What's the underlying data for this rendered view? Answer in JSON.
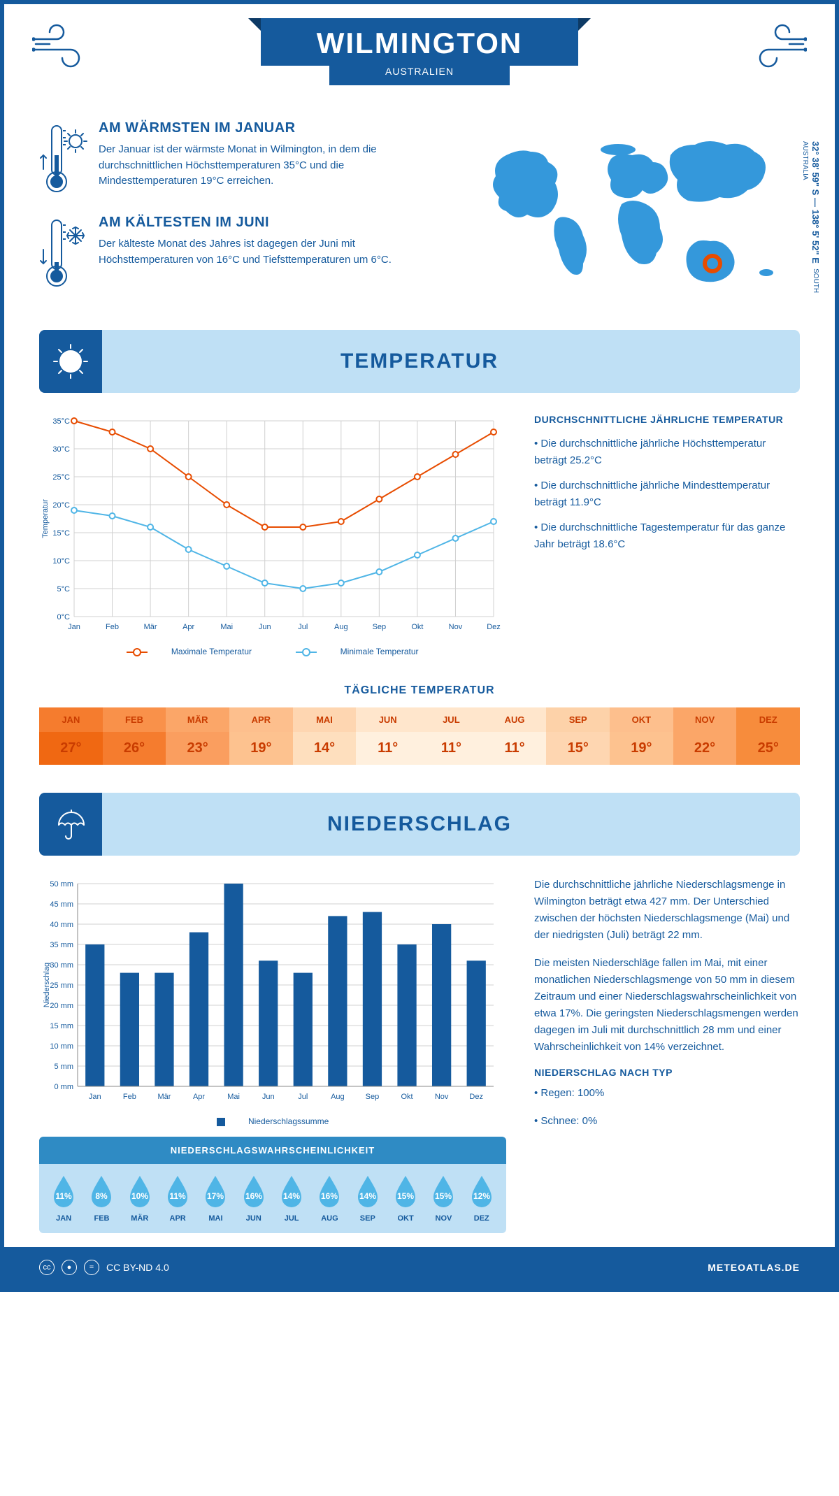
{
  "header": {
    "city": "WILMINGTON",
    "country": "AUSTRALIEN",
    "coords_main": "32° 38' 59\" S — 138° 5' 52\" E",
    "coords_sub": "SOUTH AUSTRALIA"
  },
  "facts": {
    "warm_title": "AM WÄRMSTEN IM JANUAR",
    "warm_text": "Der Januar ist der wärmste Monat in Wilmington, in dem die durchschnittlichen Höchsttemperaturen 35°C und die Mindesttemperaturen 19°C erreichen.",
    "cold_title": "AM KÄLTESTEN IM JUNI",
    "cold_text": "Der kälteste Monat des Jahres ist dagegen der Juni mit Höchsttemperaturen von 16°C und Tiefsttemperaturen um 6°C."
  },
  "sections": {
    "temp": "TEMPERATUR",
    "precip": "NIEDERSCHLAG"
  },
  "temp_chart": {
    "months": [
      "Jan",
      "Feb",
      "Mär",
      "Apr",
      "Mai",
      "Jun",
      "Jul",
      "Aug",
      "Sep",
      "Okt",
      "Nov",
      "Dez"
    ],
    "max_values": [
      35,
      33,
      30,
      25,
      20,
      16,
      16,
      17,
      21,
      25,
      29,
      33
    ],
    "min_values": [
      19,
      18,
      16,
      12,
      9,
      6,
      5,
      6,
      8,
      11,
      14,
      17
    ],
    "ylabel": "Temperatur",
    "ylim": [
      0,
      35
    ],
    "ystep": 5,
    "max_color": "#e74c00",
    "min_color": "#4fb5e6",
    "grid_color": "#d0d0d0",
    "legend_max": "Maximale Temperatur",
    "legend_min": "Minimale Temperatur"
  },
  "temp_info": {
    "title": "DURCHSCHNITTLICHE JÄHRLICHE TEMPERATUR",
    "b1": "• Die durchschnittliche jährliche Höchsttemperatur beträgt 25.2°C",
    "b2": "• Die durchschnittliche jährliche Mindesttemperatur beträgt 11.9°C",
    "b3": "• Die durchschnittliche Tagestemperatur für das ganze Jahr beträgt 18.6°C"
  },
  "daily": {
    "title": "TÄGLICHE TEMPERATUR",
    "months": [
      "JAN",
      "FEB",
      "MÄR",
      "APR",
      "MAI",
      "JUN",
      "JUL",
      "AUG",
      "SEP",
      "OKT",
      "NOV",
      "DEZ"
    ],
    "temps": [
      "27°",
      "26°",
      "23°",
      "19°",
      "14°",
      "11°",
      "11°",
      "11°",
      "15°",
      "19°",
      "22°",
      "25°"
    ],
    "head_colors": [
      "#f57c2e",
      "#f9914a",
      "#fba668",
      "#fdbf8d",
      "#fed6b1",
      "#ffe6cc",
      "#ffe6cc",
      "#ffe6cc",
      "#fdd2a9",
      "#fdbf8d",
      "#fba668",
      "#f78c3c"
    ],
    "body_colors": [
      "#f06812",
      "#f57c2e",
      "#fa9e5f",
      "#fdc28f",
      "#fedfbe",
      "#fff0de",
      "#fff0de",
      "#fff0de",
      "#fed6b1",
      "#fdc28f",
      "#fba668",
      "#f78c3c"
    ]
  },
  "precip_chart": {
    "months": [
      "Jan",
      "Feb",
      "Mär",
      "Apr",
      "Mai",
      "Jun",
      "Jul",
      "Aug",
      "Sep",
      "Okt",
      "Nov",
      "Dez"
    ],
    "values": [
      35,
      28,
      28,
      38,
      50,
      31,
      28,
      42,
      43,
      35,
      40,
      31
    ],
    "ylabel": "Niederschlag",
    "ylim": [
      0,
      50
    ],
    "ystep": 5,
    "bar_color": "#155a9d",
    "grid_color": "#d0d0d0",
    "legend": "Niederschlagssumme"
  },
  "precip_info": {
    "p1": "Die durchschnittliche jährliche Niederschlagsmenge in Wilmington beträgt etwa 427 mm. Der Unterschied zwischen der höchsten Niederschlagsmenge (Mai) und der niedrigsten (Juli) beträgt 22 mm.",
    "p2": "Die meisten Niederschläge fallen im Mai, mit einer monatlichen Niederschlagsmenge von 50 mm in diesem Zeitraum und einer Niederschlagswahrscheinlichkeit von etwa 17%. Die geringsten Niederschlagsmengen werden dagegen im Juli mit durchschnittlich 28 mm und einer Wahrscheinlichkeit von 14% verzeichnet.",
    "type_title": "NIEDERSCHLAG NACH TYP",
    "type1": "• Regen: 100%",
    "type2": "• Schnee: 0%"
  },
  "prob": {
    "title": "NIEDERSCHLAGSWAHRSCHEINLICHKEIT",
    "months": [
      "JAN",
      "FEB",
      "MÄR",
      "APR",
      "MAI",
      "JUN",
      "JUL",
      "AUG",
      "SEP",
      "OKT",
      "NOV",
      "DEZ"
    ],
    "values": [
      "11%",
      "8%",
      "10%",
      "11%",
      "17%",
      "16%",
      "14%",
      "16%",
      "14%",
      "15%",
      "15%",
      "12%"
    ],
    "drop_color": "#4fb5e6"
  },
  "footer": {
    "license": "CC BY-ND 4.0",
    "site": "METEOATLAS.DE"
  }
}
